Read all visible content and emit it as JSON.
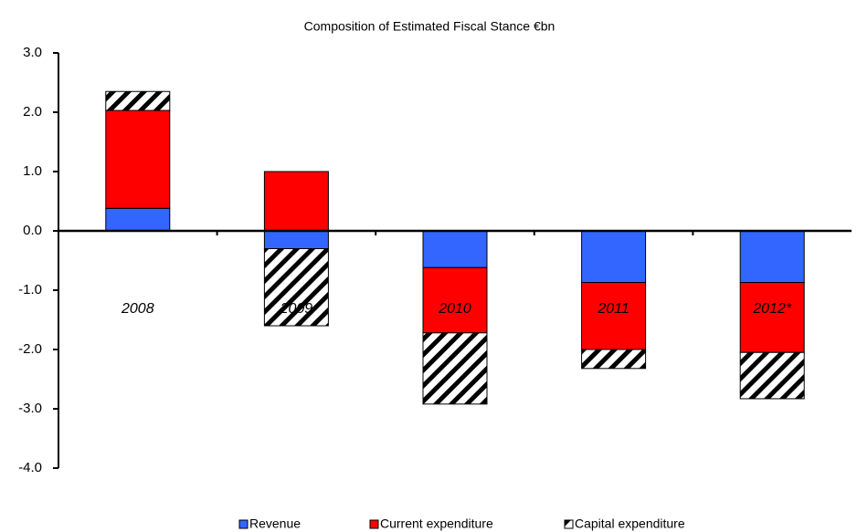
{
  "chart_data": {
    "type": "stacked_bar",
    "title": "Composition of Estimated Fiscal Stance €bn",
    "categories": [
      "2008",
      "2009",
      "2010",
      "2011",
      "2012*"
    ],
    "series": [
      {
        "name": "Revenue",
        "color": "#3366ff",
        "values": [
          0.38,
          -0.3,
          -0.62,
          -0.87,
          -0.87
        ]
      },
      {
        "name": "Current expenditure",
        "color": "#ff0000",
        "values": [
          1.65,
          1.0,
          -1.1,
          -1.13,
          -1.18
        ]
      },
      {
        "name": "Capital expenditure",
        "color": "#000000",
        "hatch": true,
        "values": [
          0.32,
          -1.3,
          -1.2,
          -0.32,
          -0.78
        ]
      }
    ],
    "ylim": [
      -4,
      3
    ],
    "yticks": [
      {
        "value": -4,
        "label": "-4.0"
      },
      {
        "value": -3,
        "label": "-3.0"
      },
      {
        "value": -2,
        "label": "-2.0"
      },
      {
        "value": -1,
        "label": "-1.0"
      },
      {
        "value": 0,
        "label": "0.0"
      },
      {
        "value": 1,
        "label": "1.0"
      },
      {
        "value": 2,
        "label": "2.0"
      },
      {
        "value": 3,
        "label": "3.0"
      }
    ],
    "legend": "bottom"
  }
}
